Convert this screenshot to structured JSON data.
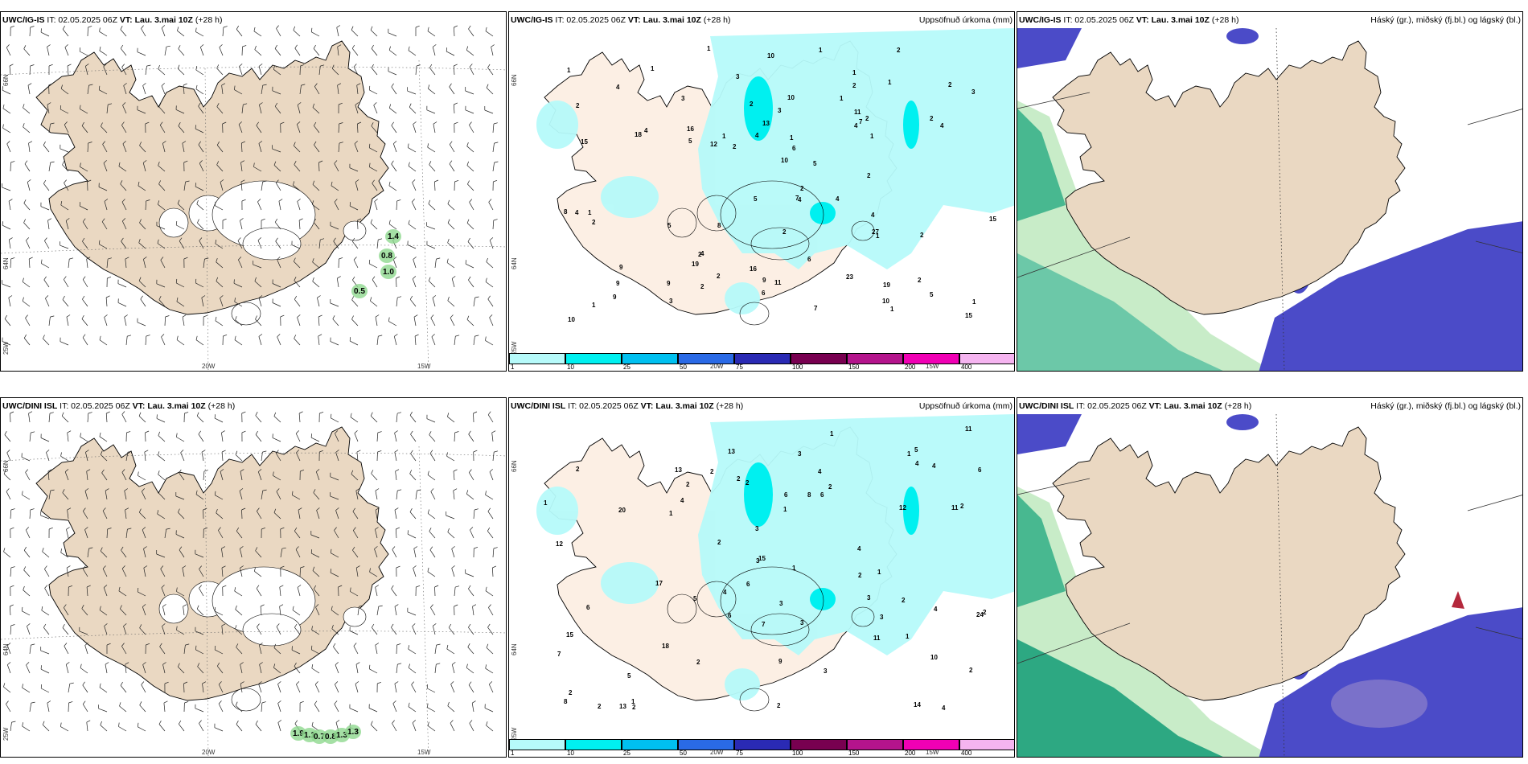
{
  "panels": [
    {
      "model": "UWC/IG-IS",
      "it": "IT: 02.05.2025 06Z",
      "vt_label": "VT:",
      "vt": "Lau. 3.mai 10Z",
      "lead": "(+28 h)",
      "right": ""
    },
    {
      "model": "UWC/IG-IS",
      "it": "IT: 02.05.2025 06Z",
      "vt_label": "VT:",
      "vt": "Lau. 3.mai 10Z",
      "lead": "(+28 h)",
      "right": "Uppsöfnuð úrkoma (mm)"
    },
    {
      "model": "UWC/IG-IS",
      "it": "IT: 02.05.2025 06Z",
      "vt_label": "VT:",
      "vt": "Lau. 3.mai 10Z",
      "lead": "(+28 h)",
      "right": "Háský (gr.), miðský (fj.bl.) og lágský (bl.)"
    },
    {
      "model": "UWC/DINI ISL",
      "it": "IT: 02.05.2025 06Z",
      "vt_label": "VT:",
      "vt": "Lau. 3.mai 10Z",
      "lead": "(+28 h)",
      "right": ""
    },
    {
      "model": "UWC/DINI ISL",
      "it": "IT: 02.05.2025 06Z",
      "vt_label": "VT:",
      "vt": "Lau. 3.mai 10Z",
      "lead": "(+28 h)",
      "right": "Uppsöfnuð úrkoma (mm)"
    },
    {
      "model": "UWC/DINI ISL",
      "it": "IT: 02.05.2025 06Z",
      "vt_label": "VT:",
      "vt": "Lau. 3.mai 10Z",
      "lead": "(+28 h)",
      "right": "Háský (gr.), miðský (fj.bl.) og lágský (bl.)"
    }
  ],
  "axes": {
    "lat66": "66N",
    "lat64": "64N",
    "lon25": "25W",
    "lon20": "20W",
    "lon15": "15W"
  },
  "colorbar": {
    "labels": [
      "1",
      "10",
      "25",
      "50",
      "75",
      "100",
      "150",
      "200",
      "400"
    ],
    "colors": [
      "#b6fafa",
      "#00f0f0",
      "#00c0f0",
      "#2a6ae6",
      "#2a2ab4",
      "#780050",
      "#b4148c",
      "#f000b4",
      "#f5b4f0"
    ]
  },
  "wind_values_top": [
    "1.4",
    "0.8",
    "1.0",
    "0.5"
  ],
  "wind_values_bottom": [
    "1.9",
    "1.1",
    "0.7",
    "0.8",
    "1.3",
    "1.3"
  ],
  "precip_numbers_top": [
    "1",
    "2",
    "2",
    "2",
    "3",
    "1",
    "2",
    "1",
    "19",
    "19",
    "15",
    "5",
    "2",
    "10",
    "23",
    "16",
    "27",
    "2",
    "5",
    "3",
    "9",
    "6",
    "4",
    "1",
    "2",
    "1",
    "3",
    "4",
    "6",
    "5",
    "8",
    "10",
    "10",
    "7",
    "7",
    "9",
    "1",
    "15",
    "16",
    "18",
    "4",
    "3",
    "2",
    "2",
    "12",
    "13",
    "11",
    "15",
    "1",
    "2",
    "4",
    "1",
    "10",
    "9",
    "4",
    "2",
    "2",
    "5",
    "4",
    "6",
    "11",
    "7",
    "2",
    "1",
    "1",
    "2",
    "9",
    "3",
    "1",
    "4",
    "4",
    "10",
    "5",
    "9",
    "8",
    "1",
    "1",
    "2",
    "4",
    "2",
    "4",
    "2",
    "1",
    "1"
  ],
  "precip_numbers_bottom": [
    "3",
    "4",
    "3",
    "2",
    "1",
    "6",
    "5",
    "15",
    "14",
    "17",
    "2",
    "20",
    "4",
    "11",
    "10",
    "11",
    "4",
    "5",
    "24",
    "11",
    "9",
    "6",
    "12",
    "13",
    "7",
    "8",
    "7",
    "3",
    "1",
    "12",
    "6",
    "15",
    "13",
    "18",
    "3",
    "4",
    "6",
    "8",
    "2",
    "2",
    "3",
    "6",
    "13",
    "5",
    "1",
    "1",
    "2",
    "2",
    "4",
    "1",
    "3",
    "2",
    "4",
    "2",
    "2",
    "2",
    "1",
    "2",
    "3",
    "2",
    "2",
    "4",
    "1",
    "1",
    "2",
    "2",
    "3",
    "2",
    "1",
    "2",
    "4",
    "6"
  ],
  "colors": {
    "land": "#ead8c2",
    "ice": "#ffffff",
    "sea": "#ffffff",
    "cloud_low": "#4b4bc8",
    "cloud_high": "#2da882"
  }
}
